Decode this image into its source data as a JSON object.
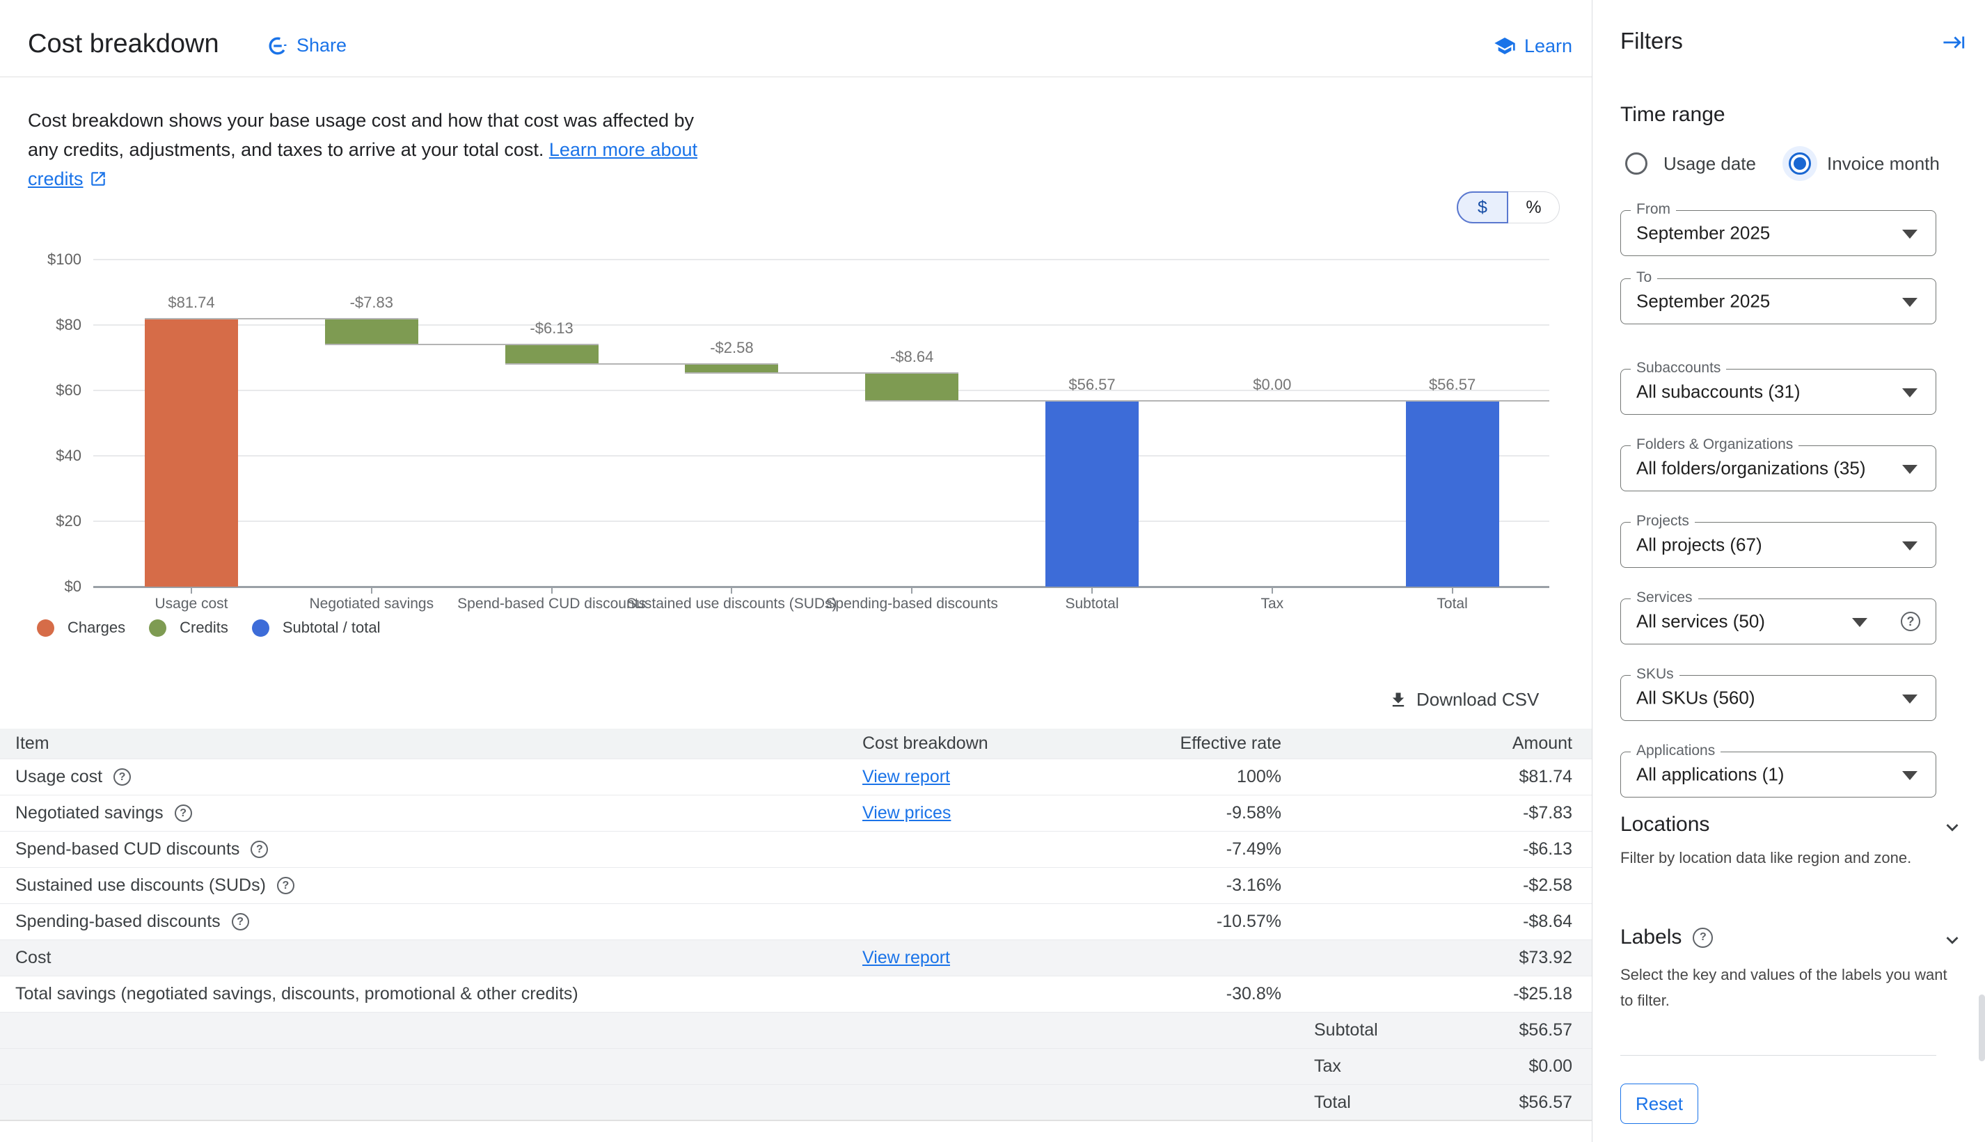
{
  "header": {
    "title": "Cost breakdown",
    "share_label": "Share",
    "learn_label": "Learn"
  },
  "description": {
    "line1": "Cost breakdown shows your base usage cost and how that cost was affected by",
    "line2_plain": "any credits, adjustments, and taxes to arrive at your total cost. ",
    "line2_link": "Learn more about",
    "line3_link": "credits"
  },
  "toggle": {
    "dollar": "$",
    "percent": "%",
    "selected": "$"
  },
  "chart_data": {
    "type": "waterfall-bar",
    "categories": [
      "Usage cost",
      "Negotiated savings",
      "Spend-based CUD discounts",
      "Sustained use discounts (SUDs)",
      "Spending-based discounts",
      "Subtotal",
      "Tax",
      "Total"
    ],
    "values": [
      81.74,
      -7.83,
      -6.13,
      -2.58,
      -8.64,
      56.57,
      0.0,
      56.57
    ],
    "bar_kinds": [
      "charge",
      "credit",
      "credit",
      "credit",
      "credit",
      "total",
      "tax",
      "total"
    ],
    "bar_labels": [
      "$81.74",
      "-$7.83",
      "-$6.13",
      "-$2.58",
      "-$8.64",
      "$56.57",
      "$0.00",
      "$56.57"
    ],
    "ylim": [
      0,
      100
    ],
    "grid": true,
    "y_ticks": [
      {
        "v": 0,
        "label": "$0"
      },
      {
        "v": 20,
        "label": "$20"
      },
      {
        "v": 40,
        "label": "$40"
      },
      {
        "v": 60,
        "label": "$60"
      },
      {
        "v": 80,
        "label": "$80"
      },
      {
        "v": 100,
        "label": "$100"
      }
    ],
    "legend_position": "bottom-left",
    "legend": [
      {
        "label": "Charges",
        "color": "#d66c48"
      },
      {
        "label": "Credits",
        "color": "#7e9b52"
      },
      {
        "label": "Subtotal / total",
        "color": "#3d6cd8"
      }
    ],
    "colors": {
      "charge": "#d66c48",
      "credit": "#7e9b52",
      "total": "#3d6cd8",
      "tax": "#3d6cd8"
    }
  },
  "download": {
    "label": "Download CSV"
  },
  "table": {
    "columns": [
      "Item",
      "Cost breakdown",
      "Effective rate",
      "Amount"
    ],
    "rows": [
      {
        "item": "Usage cost",
        "help": true,
        "link": "View report",
        "rate": "100%",
        "amount": "$81.74",
        "shaded": false
      },
      {
        "item": "Negotiated savings",
        "help": true,
        "link": "View prices",
        "rate": "-9.58%",
        "amount": "-$7.83",
        "shaded": false
      },
      {
        "item": "Spend-based CUD discounts",
        "help": true,
        "link": "",
        "rate": "-7.49%",
        "amount": "-$6.13",
        "shaded": false
      },
      {
        "item": "Sustained use discounts (SUDs)",
        "help": true,
        "link": "",
        "rate": "-3.16%",
        "amount": "-$2.58",
        "shaded": false
      },
      {
        "item": "Spending-based discounts",
        "help": true,
        "link": "",
        "rate": "-10.57%",
        "amount": "-$8.64",
        "shaded": false
      },
      {
        "item": "Cost",
        "help": false,
        "link": "View report",
        "rate": "",
        "amount": "$73.92",
        "shaded": true
      },
      {
        "item": "Total savings (negotiated savings, discounts, promotional & other credits)",
        "help": false,
        "link": "",
        "rate": "-30.8%",
        "amount": "-$25.18",
        "shaded": false
      },
      {
        "item": "",
        "summary_label": "Subtotal",
        "help": false,
        "link": "",
        "rate": "",
        "amount": "$56.57",
        "shaded": true
      },
      {
        "item": "",
        "summary_label": "Tax",
        "help": false,
        "link": "",
        "rate": "",
        "amount": "$0.00",
        "shaded": true
      },
      {
        "item": "",
        "summary_label": "Total",
        "help": false,
        "link": "",
        "rate": "",
        "amount": "$56.57",
        "shaded": true
      }
    ]
  },
  "filters": {
    "title": "Filters",
    "time_range": {
      "heading": "Time range",
      "options": [
        {
          "label": "Usage date",
          "selected": false
        },
        {
          "label": "Invoice month",
          "selected": true
        }
      ]
    },
    "fields": [
      {
        "label": "From",
        "value": "September 2025",
        "help": false
      },
      {
        "label": "To",
        "value": "September 2025",
        "help": false
      },
      {
        "label": "Subaccounts",
        "value": "All subaccounts (31)",
        "help": false
      },
      {
        "label": "Folders & Organizations",
        "value": "All folders/organizations (35)",
        "help": false
      },
      {
        "label": "Projects",
        "value": "All projects (67)",
        "help": false
      },
      {
        "label": "Services",
        "value": "All services (50)",
        "help": true
      },
      {
        "label": "SKUs",
        "value": "All SKUs (560)",
        "help": false
      },
      {
        "label": "Applications",
        "value": "All applications (1)",
        "help": false
      }
    ],
    "locations": {
      "heading": "Locations",
      "description": "Filter by location data like region and zone."
    },
    "labels": {
      "heading": "Labels",
      "description": "Select the key and values of the labels you want to filter."
    },
    "reset_label": "Reset"
  },
  "colors": {
    "accent": "#1a73e8",
    "text": "#202124",
    "muted": "#5f6368"
  }
}
